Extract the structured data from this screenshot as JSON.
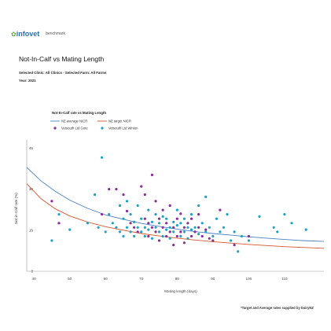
{
  "brand": {
    "logo_icon": "infovet-logo-icon",
    "logo_text": "infovet",
    "partner_text": "benchmark"
  },
  "report": {
    "title": "Not-In-Calf vs Mating Length",
    "selection": "Selected Clinic: All Clinics - Selected Farm: All Farms",
    "year": "Year: 2021",
    "footnote": "*Target and Average rates supplied by DairyNZ"
  },
  "chart_data": {
    "type": "scatter",
    "title": "Not-In-Calf rate vs Mating Length",
    "xlabel": "Mating length (days)",
    "ylabel": "Not-in-Calf rate (%)",
    "xlim": [
      38,
      121
    ],
    "ylim": [
      0,
      48
    ],
    "xticks": [
      "40",
      "50",
      "60",
      "70",
      "80",
      "90",
      "100",
      "110"
    ],
    "yticks": [
      "0",
      "15",
      "30",
      "45"
    ],
    "grid": false,
    "legend_position": "top-left",
    "lines": [
      {
        "name": "NZ average NICR",
        "color": "#4a7fc1",
        "points": [
          [
            38,
            38
          ],
          [
            42,
            33
          ],
          [
            46,
            29.2
          ],
          [
            50,
            26
          ],
          [
            55,
            23
          ],
          [
            60,
            20.6
          ],
          [
            65,
            19
          ],
          [
            70,
            17.5
          ],
          [
            75,
            16.4
          ],
          [
            80,
            15.4
          ],
          [
            85,
            14.5
          ],
          [
            90,
            13.8
          ],
          [
            95,
            13.2
          ],
          [
            100,
            12.6
          ],
          [
            105,
            12.1
          ],
          [
            110,
            11.6
          ],
          [
            115,
            11.2
          ],
          [
            121,
            10.9
          ]
        ]
      },
      {
        "name": "NZ target NICR",
        "color": "#d8542a",
        "points": [
          [
            38,
            32
          ],
          [
            42,
            26.5
          ],
          [
            46,
            22.8
          ],
          [
            50,
            20.2
          ],
          [
            55,
            18
          ],
          [
            60,
            16.3
          ],
          [
            65,
            15
          ],
          [
            70,
            13.8
          ],
          [
            75,
            12.9
          ],
          [
            80,
            12.1
          ],
          [
            85,
            11.4
          ],
          [
            90,
            10.8
          ],
          [
            95,
            10.3
          ],
          [
            100,
            9.8
          ],
          [
            105,
            9.4
          ],
          [
            110,
            9
          ],
          [
            115,
            8.7
          ],
          [
            121,
            8.4
          ]
        ]
      }
    ],
    "series": [
      {
        "name": "Vetsouth Ltd Gore",
        "color": "#8a2c9a",
        "points": [
          [
            45,
            25.6
          ],
          [
            47,
            17.6
          ],
          [
            59,
            20.8
          ],
          [
            61,
            30
          ],
          [
            63,
            30
          ],
          [
            65,
            28
          ],
          [
            66,
            22
          ],
          [
            67,
            17.6
          ],
          [
            68,
            16
          ],
          [
            69,
            14.4
          ],
          [
            70,
            31
          ],
          [
            71,
            28
          ],
          [
            71,
            19.2
          ],
          [
            72,
            12.8
          ],
          [
            72,
            17.6
          ],
          [
            73,
            35.2
          ],
          [
            73,
            16
          ],
          [
            74,
            25.6
          ],
          [
            74,
            14.4
          ],
          [
            75,
            11.2
          ],
          [
            75,
            19.2
          ],
          [
            76,
            16
          ],
          [
            76,
            22.4
          ],
          [
            77,
            12.8
          ],
          [
            77,
            17.6
          ],
          [
            78,
            24
          ],
          [
            78,
            14.4
          ],
          [
            79,
            9.6
          ],
          [
            79,
            16
          ],
          [
            80,
            19.2
          ],
          [
            80,
            12.8
          ],
          [
            81,
            14.4
          ],
          [
            81,
            21
          ],
          [
            82,
            16
          ],
          [
            82,
            10.4
          ],
          [
            83,
            17.6
          ],
          [
            84,
            12.8
          ],
          [
            84,
            19.2
          ],
          [
            85,
            14.4
          ],
          [
            86,
            20.8
          ],
          [
            86,
            16
          ],
          [
            87,
            12.8
          ],
          [
            88,
            15.2
          ],
          [
            89,
            12
          ],
          [
            90,
            11.2
          ],
          [
            92,
            22.4
          ],
          [
            96,
            9.6
          ],
          [
            100,
            12.8
          ]
        ]
      },
      {
        "name": "Vetsouth Ltd Winton",
        "color": "#1ea3c6",
        "points": [
          [
            45,
            11.2
          ],
          [
            47,
            20.8
          ],
          [
            50,
            15.2
          ],
          [
            55,
            17.6
          ],
          [
            57,
            28
          ],
          [
            58,
            16
          ],
          [
            59,
            41.6
          ],
          [
            60,
            14.4
          ],
          [
            61,
            20.8
          ],
          [
            62,
            17.6
          ],
          [
            63,
            16
          ],
          [
            64,
            24
          ],
          [
            64,
            14.4
          ],
          [
            65,
            19.2
          ],
          [
            65,
            12.8
          ],
          [
            66,
            16
          ],
          [
            66,
            25.6
          ],
          [
            67,
            14.4
          ],
          [
            67,
            20.8
          ],
          [
            68,
            18
          ],
          [
            68,
            12.8
          ],
          [
            69,
            16
          ],
          [
            69,
            24
          ],
          [
            70,
            14.4
          ],
          [
            70,
            19.2
          ],
          [
            71,
            16
          ],
          [
            71,
            12.8
          ],
          [
            72,
            22.4
          ],
          [
            72,
            15.2
          ],
          [
            73,
            18
          ],
          [
            73,
            12
          ],
          [
            74,
            16
          ],
          [
            74,
            20.8
          ],
          [
            75,
            14.4
          ],
          [
            75,
            17.6
          ],
          [
            76,
            12.8
          ],
          [
            76,
            20
          ],
          [
            77,
            15.2
          ],
          [
            77,
            19.2
          ],
          [
            78,
            16
          ],
          [
            78,
            12
          ],
          [
            79,
            18
          ],
          [
            79,
            14.4
          ],
          [
            80,
            16.8
          ],
          [
            80,
            22.4
          ],
          [
            81,
            12.8
          ],
          [
            81,
            17.6
          ],
          [
            82,
            14.4
          ],
          [
            82,
            19.2
          ],
          [
            83,
            16
          ],
          [
            83,
            12
          ],
          [
            84,
            15.2
          ],
          [
            84,
            20.8
          ],
          [
            85,
            16
          ],
          [
            86,
            13.6
          ],
          [
            86,
            24
          ],
          [
            87,
            17.6
          ],
          [
            88,
            14.4
          ],
          [
            88,
            27.2
          ],
          [
            89,
            16
          ],
          [
            90,
            12.8
          ],
          [
            91,
            19.2
          ],
          [
            92,
            14.4
          ],
          [
            93,
            16
          ],
          [
            94,
            20.8
          ],
          [
            95,
            11.2
          ],
          [
            96,
            14.4
          ],
          [
            97,
            7.2
          ],
          [
            98,
            12.8
          ],
          [
            100,
            11.2
          ],
          [
            103,
            20
          ],
          [
            107,
            16
          ],
          [
            108,
            14.4
          ],
          [
            110,
            20.8
          ],
          [
            112,
            17.6
          ],
          [
            116,
            15.2
          ]
        ]
      }
    ]
  }
}
